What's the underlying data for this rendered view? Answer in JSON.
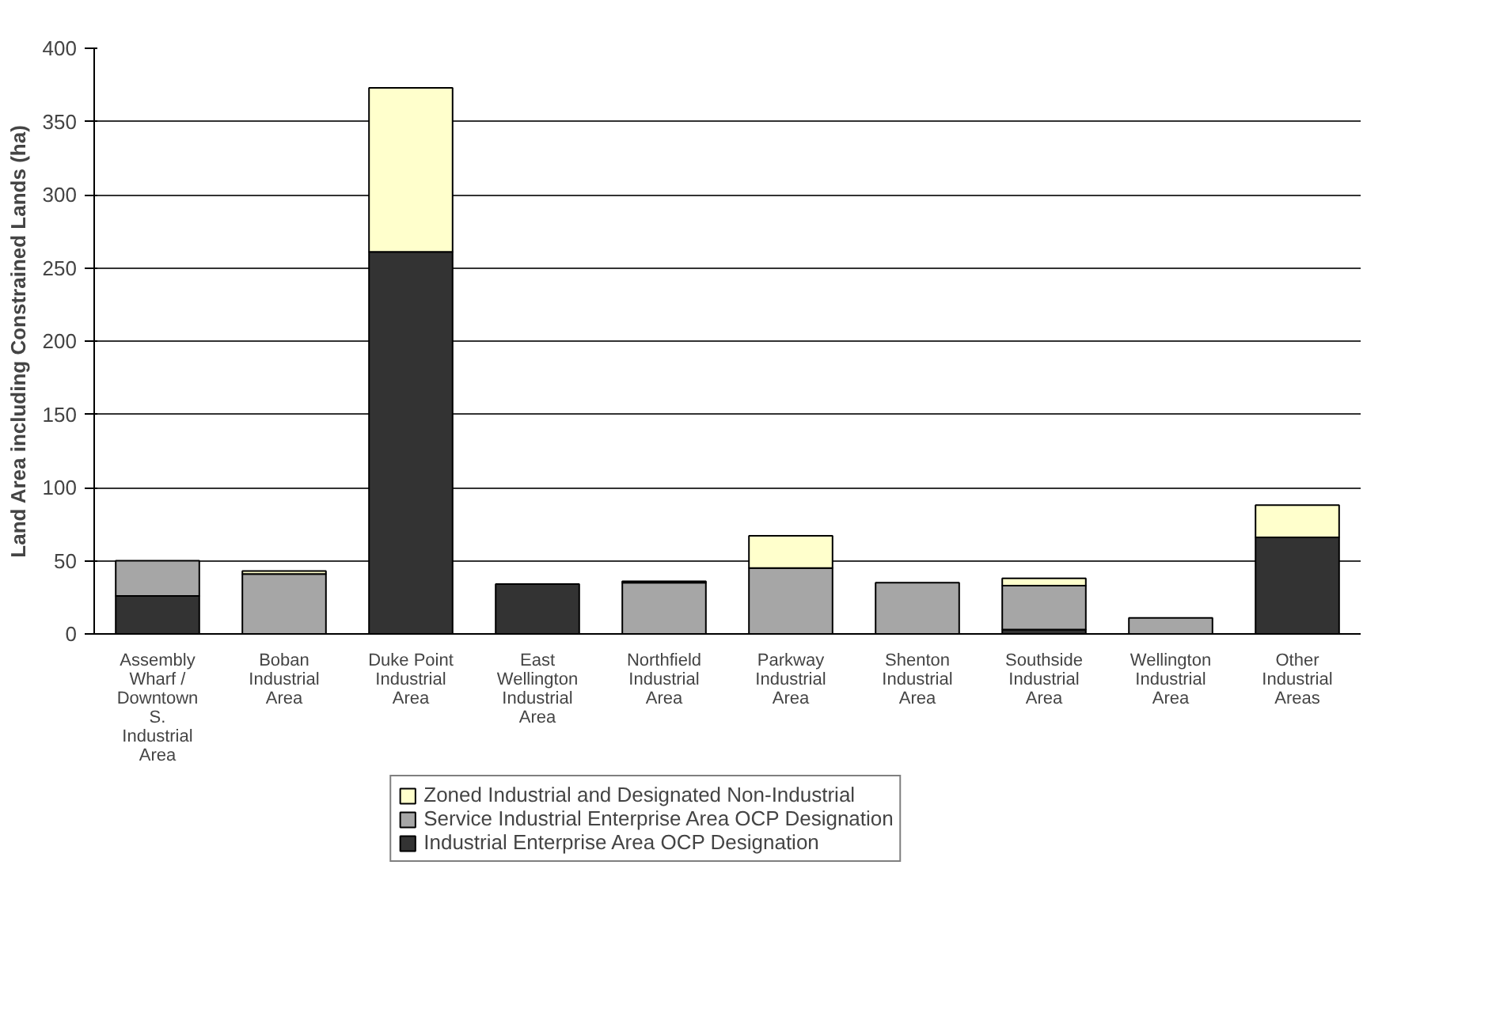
{
  "chart_data": {
    "type": "bar",
    "stacked": true,
    "ylabel": "Land Area including Constrained Lands (ha)",
    "categories": [
      "Assembly Wharf / Downtown S. Industrial Area",
      "Boban Industrial Area",
      "Duke Point Industrial Area",
      "East Wellington Industrial Area",
      "Northfield Industrial Area",
      "Parkway Industrial Area",
      "Shenton Industrial Area",
      "Southside Industrial Area",
      "Wellington Industrial Area",
      "Other Industrial Areas"
    ],
    "series": [
      {
        "name": "Industrial Enterprise Area OCP Designation",
        "color": "#333333",
        "values": [
          26,
          0,
          261,
          34,
          0,
          0,
          0,
          3,
          0,
          66
        ]
      },
      {
        "name": "Service Industrial Enterprise Area OCP Designation",
        "color": "#a6a6a6",
        "values": [
          24,
          41,
          0,
          0,
          35,
          45,
          35,
          30,
          11,
          0
        ]
      },
      {
        "name": "Zoned Industrial and Designated Non-Industrial",
        "color": "#ffffcc",
        "values": [
          0,
          2,
          112,
          0,
          1,
          22,
          0,
          5,
          0,
          22
        ]
      }
    ],
    "ylim": [
      0,
      400
    ],
    "yticks": [
      0,
      50,
      100,
      150,
      200,
      250,
      300,
      350,
      400
    ],
    "grid": "y",
    "legend": "bottom"
  }
}
